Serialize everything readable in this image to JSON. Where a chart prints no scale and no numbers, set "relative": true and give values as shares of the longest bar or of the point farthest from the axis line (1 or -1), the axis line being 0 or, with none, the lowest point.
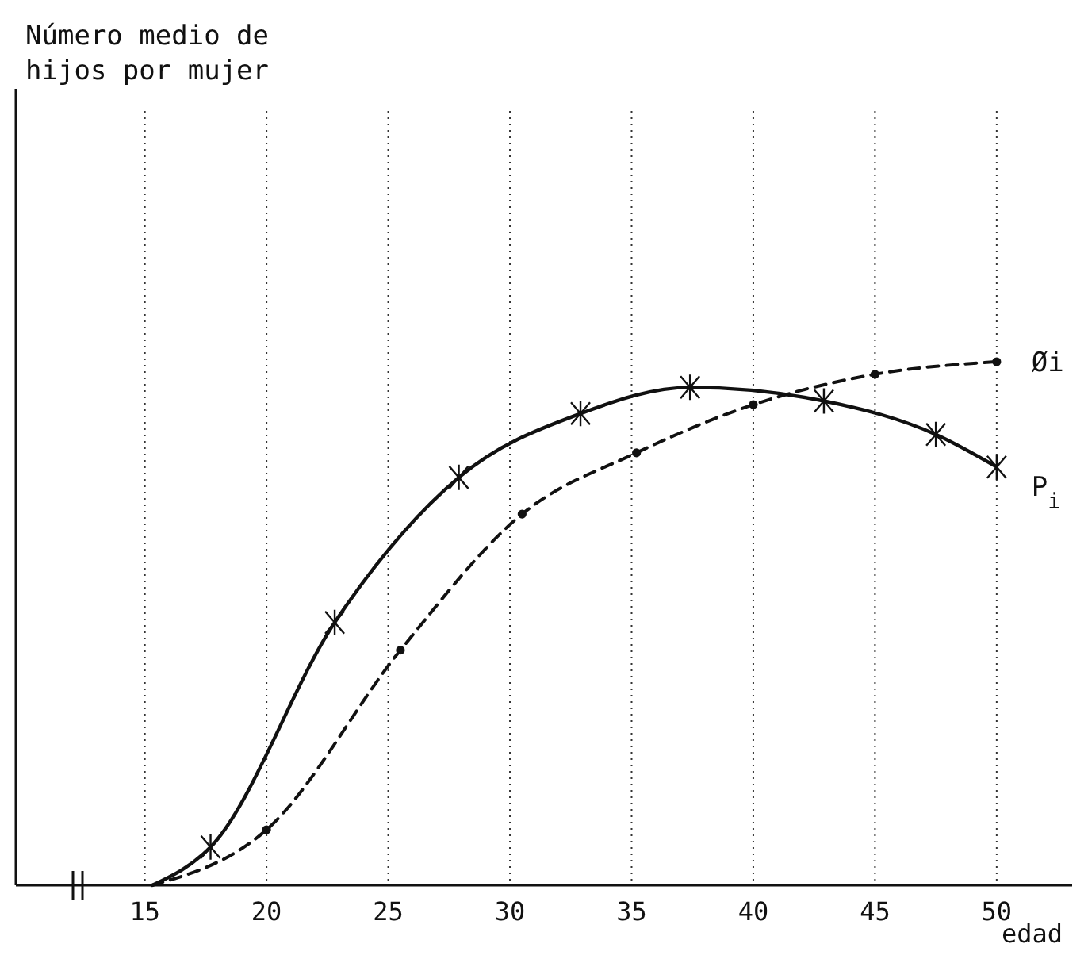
{
  "chart_data": {
    "type": "line",
    "relative": true,
    "annotations": [
      "Número medio de\nhijos por mujer"
    ],
    "xlabel": "edad",
    "xlim": [
      9.7,
      53.1
    ],
    "xticks": [
      15,
      20,
      25,
      30,
      35,
      40,
      45,
      50
    ],
    "grid": "x",
    "legend": false,
    "series": [
      {
        "name": "P$_{i}$",
        "color": "#111111",
        "marker": "cross",
        "line_style": "solid",
        "x": [
          15.3,
          17.7,
          22.8,
          27.9,
          32.9,
          37.4,
          42.9,
          47.5,
          50
        ],
        "values": [
          0,
          0.073,
          0.502,
          0.779,
          0.901,
          0.951,
          0.925,
          0.861,
          0.799
        ]
      },
      {
        "name": "Øi",
        "color": "#111111",
        "marker": "circle",
        "line_style": "dashed",
        "x": [
          15.3,
          20,
          25.5,
          30.5,
          35.2,
          40,
          45,
          50
        ],
        "values": [
          0,
          0.106,
          0.449,
          0.709,
          0.826,
          0.918,
          0.976,
          1.0
        ]
      }
    ]
  }
}
